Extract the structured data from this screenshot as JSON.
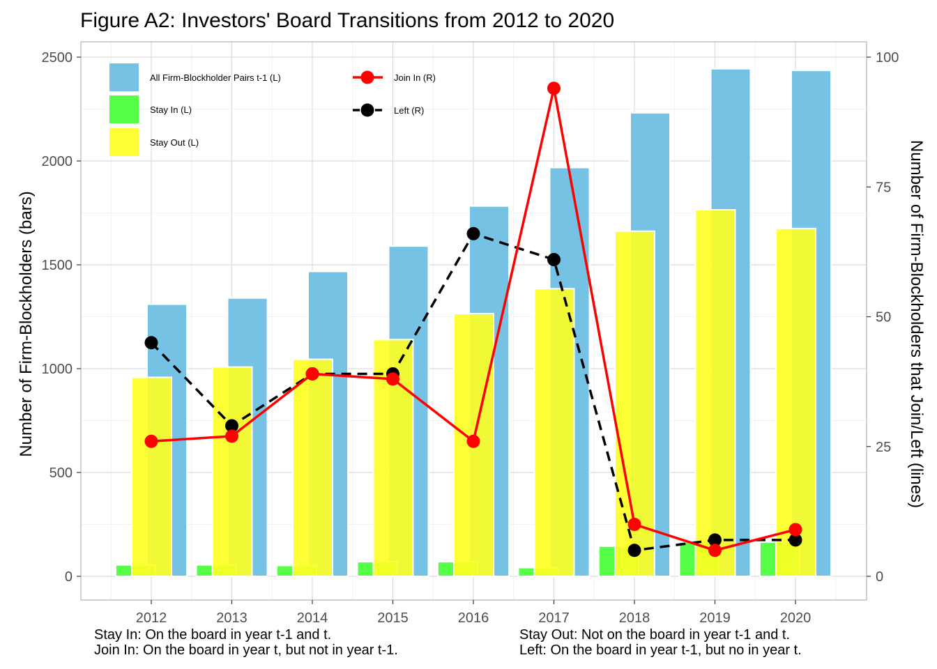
{
  "chart_data": {
    "type": "bar",
    "title": "Figure A2: Investors' Board Transitions from 2012 to 2020",
    "ylabel": "Number of Firm-Blockholders (bars)",
    "y2label": "Number of Firm-Blockholders that Join/Left (lines)",
    "xlabel": "",
    "categories": [
      "2012",
      "2013",
      "2014",
      "2015",
      "2016",
      "2017",
      "2018",
      "2019",
      "2020"
    ],
    "ylim": [
      0,
      2500
    ],
    "y_ticks": [
      "0",
      "500",
      "1000",
      "1500",
      "2000",
      "2500"
    ],
    "y2lim": [
      0,
      100
    ],
    "y2_ticks": [
      "0",
      "25",
      "50",
      "75",
      "100"
    ],
    "grid": true,
    "legend_position": "top-left",
    "series": [
      {
        "name": "All Firm-Blockholder Pairs t-1 (L)",
        "type": "bar",
        "axis": "left",
        "color": "#76c2e4",
        "values": [
          1310,
          1340,
          1468,
          1590,
          1783,
          1968,
          2232,
          2444,
          2436
        ]
      },
      {
        "name": "Stay In (L)",
        "type": "bar",
        "axis": "left",
        "color": "#44ff33",
        "values": [
          55,
          55,
          52,
          70,
          70,
          42,
          145,
          165,
          165
        ]
      },
      {
        "name": "Stay Out (L)",
        "type": "bar",
        "axis": "left",
        "color": "#ffff22",
        "values": [
          958,
          1008,
          1045,
          1140,
          1265,
          1385,
          1662,
          1765,
          1675
        ]
      },
      {
        "name": "Join In (R)",
        "type": "line",
        "axis": "right",
        "color": "#ff0000",
        "dash": "solid",
        "values": [
          26,
          27,
          39,
          38,
          26,
          94,
          10,
          5,
          9
        ]
      },
      {
        "name": "Left (R)",
        "type": "line",
        "axis": "right",
        "color": "#000000",
        "dash": "dashed",
        "values": [
          45,
          29,
          39,
          39,
          66,
          61,
          5,
          7,
          7
        ]
      }
    ]
  },
  "notes": {
    "stay_in": "Stay In: On the board in year t-1 and t.",
    "join_in": "Join In: On the board in year t, but not in year t-1.",
    "stay_out": "Stay Out: Not on the board in year t-1 and t.",
    "left": "Left: On the board in year t-1, but no in year t."
  }
}
